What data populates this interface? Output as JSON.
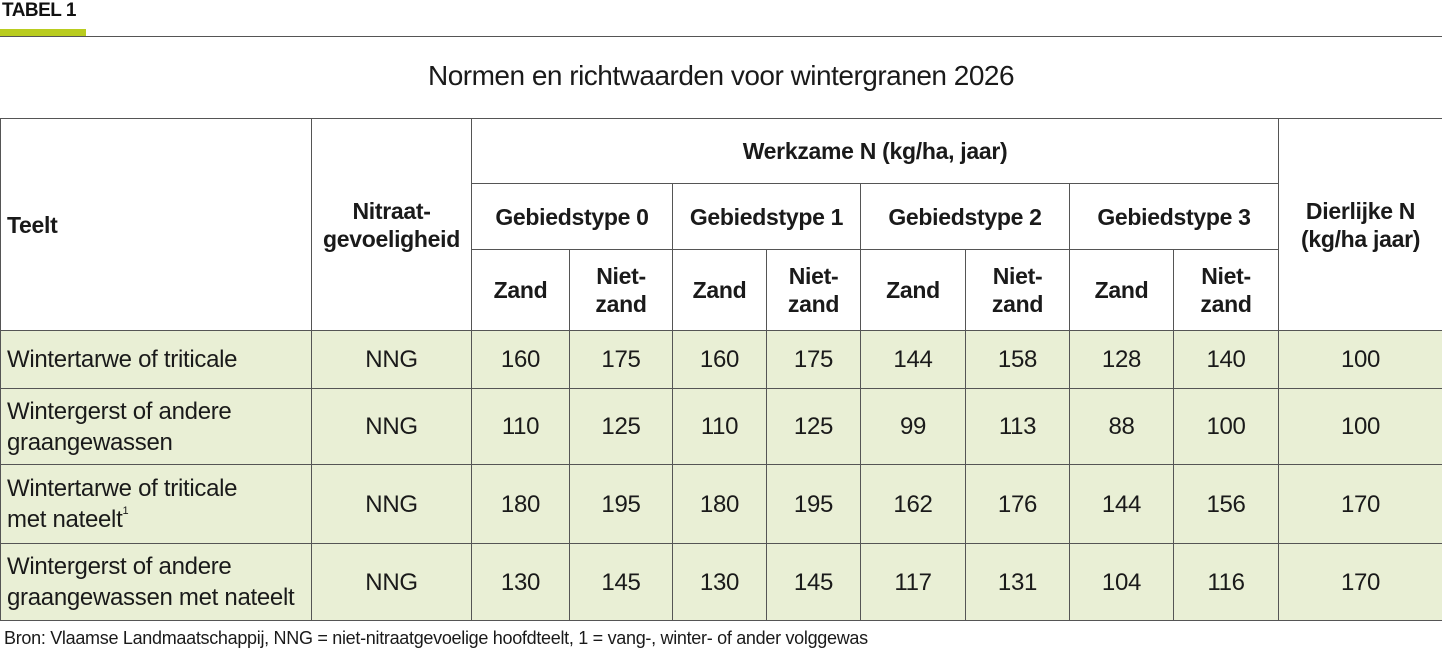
{
  "label": "TABEL 1",
  "title": "Normen en richtwaarden voor wintergranen 2026",
  "header": {
    "teelt": "Teelt",
    "nitraat": "Nitraat-\ngevoeligheid",
    "werkzame": "Werkzame N (kg/ha, jaar)",
    "dierlijke": "Dierlijke N\n(kg/ha jaar)",
    "gebiedstypes": [
      "Gebiedstype 0",
      "Gebiedstype 1",
      "Gebiedstype 2",
      "Gebiedstype 3"
    ],
    "zand": "Zand",
    "nietzand": "Niet-\nzand"
  },
  "rows": [
    {
      "teelt": "Wintertarwe of triticale",
      "sup": "",
      "nitraat": "NNG",
      "values": [
        "160",
        "175",
        "160",
        "175",
        "144",
        "158",
        "128",
        "140"
      ],
      "dierlijke": "100"
    },
    {
      "teelt": "Wintergerst of andere\ngraangewassen",
      "sup": "",
      "nitraat": "NNG",
      "values": [
        "110",
        "125",
        "110",
        "125",
        "99",
        "113",
        "88",
        "100"
      ],
      "dierlijke": "100"
    },
    {
      "teelt": "Wintertarwe of triticale\nmet nateelt",
      "sup": "1",
      "nitraat": "NNG",
      "values": [
        "180",
        "195",
        "180",
        "195",
        "162",
        "176",
        "144",
        "156"
      ],
      "dierlijke": "170"
    },
    {
      "teelt": "Wintergerst of andere\ngraangewassen met nateelt",
      "sup": "",
      "nitraat": "NNG",
      "values": [
        "130",
        "145",
        "130",
        "145",
        "117",
        "131",
        "104",
        "116"
      ],
      "dierlijke": "170"
    }
  ],
  "source": "Bron: Vlaamse Landmaatschappij, NNG = niet-nitraatgevoelige hoofdteelt, 1 = vang-, winter- of ander volggewas"
}
